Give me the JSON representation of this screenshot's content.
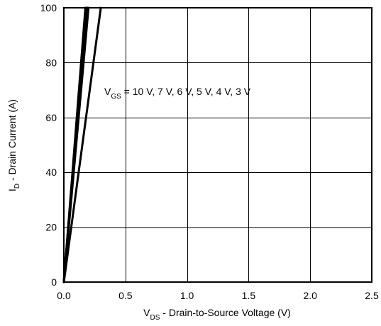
{
  "chart_data": {
    "type": "line",
    "title": "",
    "xlabel": {
      "main": "V",
      "sub": "DS",
      "rest": " - Drain-to-Source Voltage (V)"
    },
    "ylabel": {
      "main": "I",
      "sub": "D",
      "rest": " - Drain Current (A)"
    },
    "xlim": [
      0,
      2.5
    ],
    "ylim": [
      0,
      100
    ],
    "xticks": [
      0.0,
      0.5,
      1.0,
      1.5,
      2.0,
      2.5
    ],
    "xtick_labels": [
      "0.0",
      "0.5",
      "1.0",
      "1.5",
      "2.0",
      "2.5"
    ],
    "yticks": [
      0,
      20,
      40,
      60,
      80,
      100
    ],
    "ytick_labels": [
      "0",
      "20",
      "40",
      "60",
      "80",
      "100"
    ],
    "grid": true,
    "line_color": "#000000",
    "annotation": {
      "main": "V",
      "sub": "GS",
      "rest": " = 10 V, 7 V, 6 V, 5 V, 4 V, 3 V"
    },
    "series": [
      {
        "points": [
          [
            0,
            0
          ],
          [
            0.175,
            100
          ]
        ]
      },
      {
        "points": [
          [
            0,
            0
          ],
          [
            0.18,
            100
          ]
        ]
      },
      {
        "points": [
          [
            0,
            0
          ],
          [
            0.185,
            100
          ]
        ]
      },
      {
        "points": [
          [
            0,
            0
          ],
          [
            0.19,
            100
          ]
        ]
      },
      {
        "points": [
          [
            0,
            0
          ],
          [
            0.2,
            100
          ]
        ]
      },
      {
        "points": [
          [
            0,
            0
          ],
          [
            0.3,
            100
          ]
        ]
      }
    ]
  }
}
